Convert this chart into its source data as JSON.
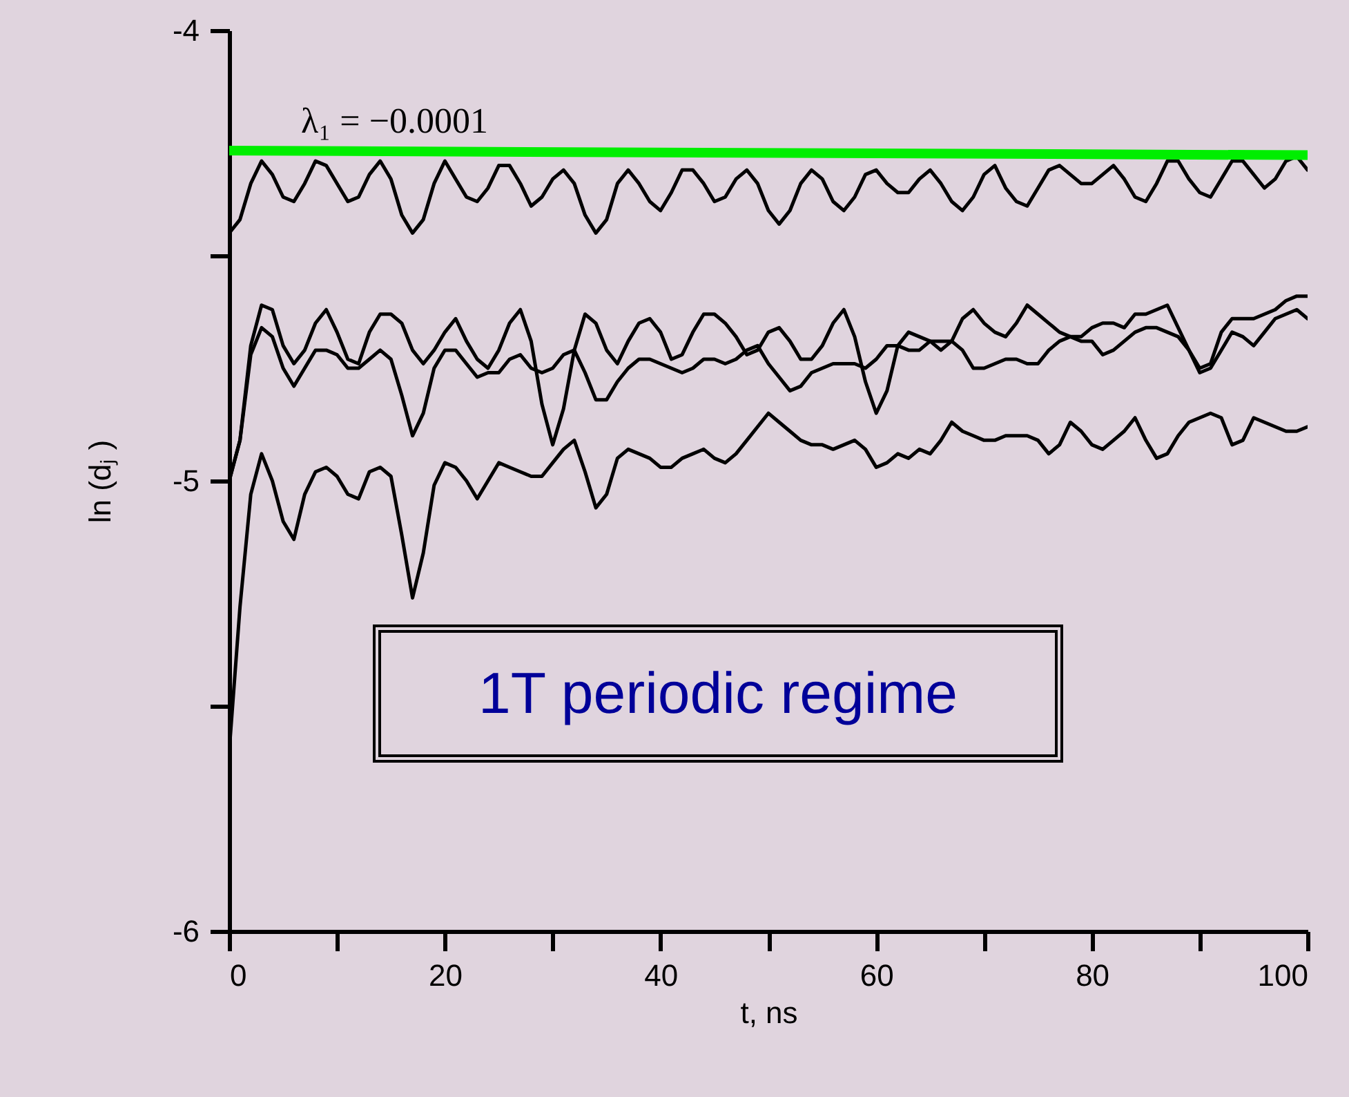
{
  "chart_data": {
    "type": "line",
    "xlabel": "t, ns",
    "ylabel": "ln (dⱼ )",
    "xlim": [
      0,
      100
    ],
    "ylim": [
      -6,
      -4
    ],
    "xticks": [
      0,
      {
        "value": 10,
        "label": null
      },
      20,
      {
        "value": 30,
        "label": null
      },
      40,
      {
        "value": 50,
        "label": null
      },
      60,
      {
        "value": 70,
        "label": null
      },
      80,
      {
        "value": 90,
        "label": null
      },
      100
    ],
    "yticks": [
      -6,
      {
        "value": -5.5,
        "label": null
      },
      -5,
      {
        "value": -4.5,
        "label": null
      },
      -4
    ],
    "x": [
      0,
      1,
      2,
      3,
      4,
      5,
      6,
      7,
      8,
      9,
      10,
      11,
      12,
      13,
      14,
      15,
      16,
      17,
      18,
      19,
      20,
      21,
      22,
      23,
      24,
      25,
      26,
      27,
      28,
      29,
      30,
      31,
      32,
      33,
      34,
      35,
      36,
      37,
      38,
      39,
      40,
      41,
      42,
      43,
      44,
      45,
      46,
      47,
      48,
      49,
      50,
      51,
      52,
      53,
      54,
      55,
      56,
      57,
      58,
      59,
      60,
      61,
      62,
      63,
      64,
      65,
      66,
      67,
      68,
      69,
      70,
      71,
      72,
      73,
      74,
      75,
      76,
      77,
      78,
      79,
      80,
      81,
      82,
      83,
      84,
      85,
      86,
      87,
      88,
      89,
      90,
      91,
      92,
      93,
      94,
      95,
      96,
      97,
      98,
      99,
      100
    ],
    "series": [
      {
        "color": "#000000",
        "values": [
          -4.45,
          -4.42,
          -4.34,
          -4.29,
          -4.32,
          -4.37,
          -4.38,
          -4.34,
          -4.29,
          -4.3,
          -4.34,
          -4.38,
          -4.37,
          -4.32,
          -4.29,
          -4.33,
          -4.41,
          -4.45,
          -4.42,
          -4.34,
          -4.29,
          -4.33,
          -4.37,
          -4.38,
          -4.35,
          -4.3,
          -4.3,
          -4.34,
          -4.39,
          -4.37,
          -4.33,
          -4.31,
          -4.34,
          -4.41,
          -4.45,
          -4.42,
          -4.34,
          -4.31,
          -4.34,
          -4.38,
          -4.4,
          -4.36,
          -4.31,
          -4.31,
          -4.34,
          -4.38,
          -4.37,
          -4.33,
          -4.31,
          -4.34,
          -4.4,
          -4.43,
          -4.4,
          -4.34,
          -4.31,
          -4.33,
          -4.38,
          -4.4,
          -4.37,
          -4.32,
          -4.31,
          -4.34,
          -4.36,
          -4.36,
          -4.33,
          -4.31,
          -4.34,
          -4.38,
          -4.4,
          -4.37,
          -4.32,
          -4.3,
          -4.35,
          -4.38,
          -4.39,
          -4.35,
          -4.31,
          -4.3,
          -4.32,
          -4.34,
          -4.34,
          -4.32,
          -4.3,
          -4.33,
          -4.37,
          -4.38,
          -4.34,
          -4.29,
          -4.29,
          -4.33,
          -4.36,
          -4.37,
          -4.33,
          -4.29,
          -4.29,
          -4.32,
          -4.35,
          -4.33,
          -4.29,
          -4.28,
          -4.31
        ]
      },
      {
        "color": "#000000",
        "values": [
          -5.0,
          -4.91,
          -4.7,
          -4.61,
          -4.62,
          -4.7,
          -4.74,
          -4.71,
          -4.65,
          -4.62,
          -4.67,
          -4.73,
          -4.74,
          -4.67,
          -4.63,
          -4.63,
          -4.65,
          -4.71,
          -4.74,
          -4.71,
          -4.67,
          -4.64,
          -4.69,
          -4.73,
          -4.75,
          -4.71,
          -4.65,
          -4.62,
          -4.69,
          -4.83,
          -4.92,
          -4.84,
          -4.71,
          -4.63,
          -4.65,
          -4.71,
          -4.74,
          -4.69,
          -4.65,
          -4.64,
          -4.67,
          -4.73,
          -4.72,
          -4.67,
          -4.63,
          -4.63,
          -4.65,
          -4.68,
          -4.72,
          -4.71,
          -4.67,
          -4.66,
          -4.69,
          -4.73,
          -4.73,
          -4.7,
          -4.65,
          -4.62,
          -4.68,
          -4.78,
          -4.85,
          -4.8,
          -4.7,
          -4.67,
          -4.68,
          -4.69,
          -4.71,
          -4.69,
          -4.64,
          -4.62,
          -4.65,
          -4.67,
          -4.68,
          -4.65,
          -4.61,
          -4.63,
          -4.65,
          -4.67,
          -4.68,
          -4.69,
          -4.69,
          -4.72,
          -4.71,
          -4.69,
          -4.67,
          -4.66,
          -4.66,
          -4.67,
          -4.68,
          -4.71,
          -4.76,
          -4.75,
          -4.71,
          -4.67,
          -4.68,
          -4.7,
          -4.67,
          -4.64,
          -4.63,
          -4.62,
          -4.64
        ]
      },
      {
        "color": "#000000",
        "values": [
          -5.0,
          -4.91,
          -4.72,
          -4.66,
          -4.68,
          -4.75,
          -4.79,
          -4.75,
          -4.71,
          -4.71,
          -4.72,
          -4.75,
          -4.75,
          -4.73,
          -4.71,
          -4.73,
          -4.81,
          -4.9,
          -4.85,
          -4.75,
          -4.71,
          -4.71,
          -4.74,
          -4.77,
          -4.76,
          -4.76,
          -4.73,
          -4.72,
          -4.75,
          -4.76,
          -4.75,
          -4.72,
          -4.71,
          -4.76,
          -4.82,
          -4.82,
          -4.78,
          -4.75,
          -4.73,
          -4.73,
          -4.74,
          -4.75,
          -4.76,
          -4.75,
          -4.73,
          -4.73,
          -4.74,
          -4.73,
          -4.71,
          -4.7,
          -4.74,
          -4.77,
          -4.8,
          -4.79,
          -4.76,
          -4.75,
          -4.74,
          -4.74,
          -4.74,
          -4.75,
          -4.73,
          -4.7,
          -4.7,
          -4.71,
          -4.71,
          -4.69,
          -4.69,
          -4.69,
          -4.71,
          -4.75,
          -4.75,
          -4.74,
          -4.73,
          -4.73,
          -4.74,
          -4.74,
          -4.71,
          -4.69,
          -4.68,
          -4.68,
          -4.66,
          -4.65,
          -4.65,
          -4.66,
          -4.63,
          -4.63,
          -4.62,
          -4.61,
          -4.66,
          -4.71,
          -4.75,
          -4.74,
          -4.67,
          -4.64,
          -4.64,
          -4.64,
          -4.63,
          -4.62,
          -4.6,
          -4.59,
          -4.59
        ]
      },
      {
        "color": "#000000",
        "values": [
          -5.6,
          -5.28,
          -5.03,
          -4.94,
          -5.0,
          -5.09,
          -5.13,
          -5.03,
          -4.98,
          -4.97,
          -4.99,
          -5.03,
          -5.04,
          -4.98,
          -4.97,
          -4.99,
          -5.12,
          -5.26,
          -5.16,
          -5.01,
          -4.96,
          -4.97,
          -5.0,
          -5.04,
          -5.0,
          -4.96,
          -4.97,
          -4.98,
          -4.99,
          -4.99,
          -4.96,
          -4.93,
          -4.91,
          -4.98,
          -5.06,
          -5.03,
          -4.95,
          -4.93,
          -4.94,
          -4.95,
          -4.97,
          -4.97,
          -4.95,
          -4.94,
          -4.93,
          -4.95,
          -4.96,
          -4.94,
          -4.91,
          -4.88,
          -4.85,
          -4.87,
          -4.89,
          -4.91,
          -4.92,
          -4.92,
          -4.93,
          -4.92,
          -4.91,
          -4.93,
          -4.97,
          -4.96,
          -4.94,
          -4.95,
          -4.93,
          -4.94,
          -4.91,
          -4.87,
          -4.89,
          -4.9,
          -4.91,
          -4.91,
          -4.9,
          -4.9,
          -4.9,
          -4.91,
          -4.94,
          -4.92,
          -4.87,
          -4.89,
          -4.92,
          -4.93,
          -4.91,
          -4.89,
          -4.86,
          -4.91,
          -4.95,
          -4.94,
          -4.9,
          -4.87,
          -4.86,
          -4.85,
          -4.86,
          -4.92,
          -4.91,
          -4.86,
          -4.87,
          -4.88,
          -4.89,
          -4.89,
          -4.88
        ]
      },
      {
        "name": "λ₁ = −0.0001",
        "color": "#00ee00",
        "x": [
          0,
          100
        ],
        "values": [
          -4.267,
          -4.277
        ]
      }
    ],
    "annotations": [
      "1T periodic regime"
    ]
  }
}
